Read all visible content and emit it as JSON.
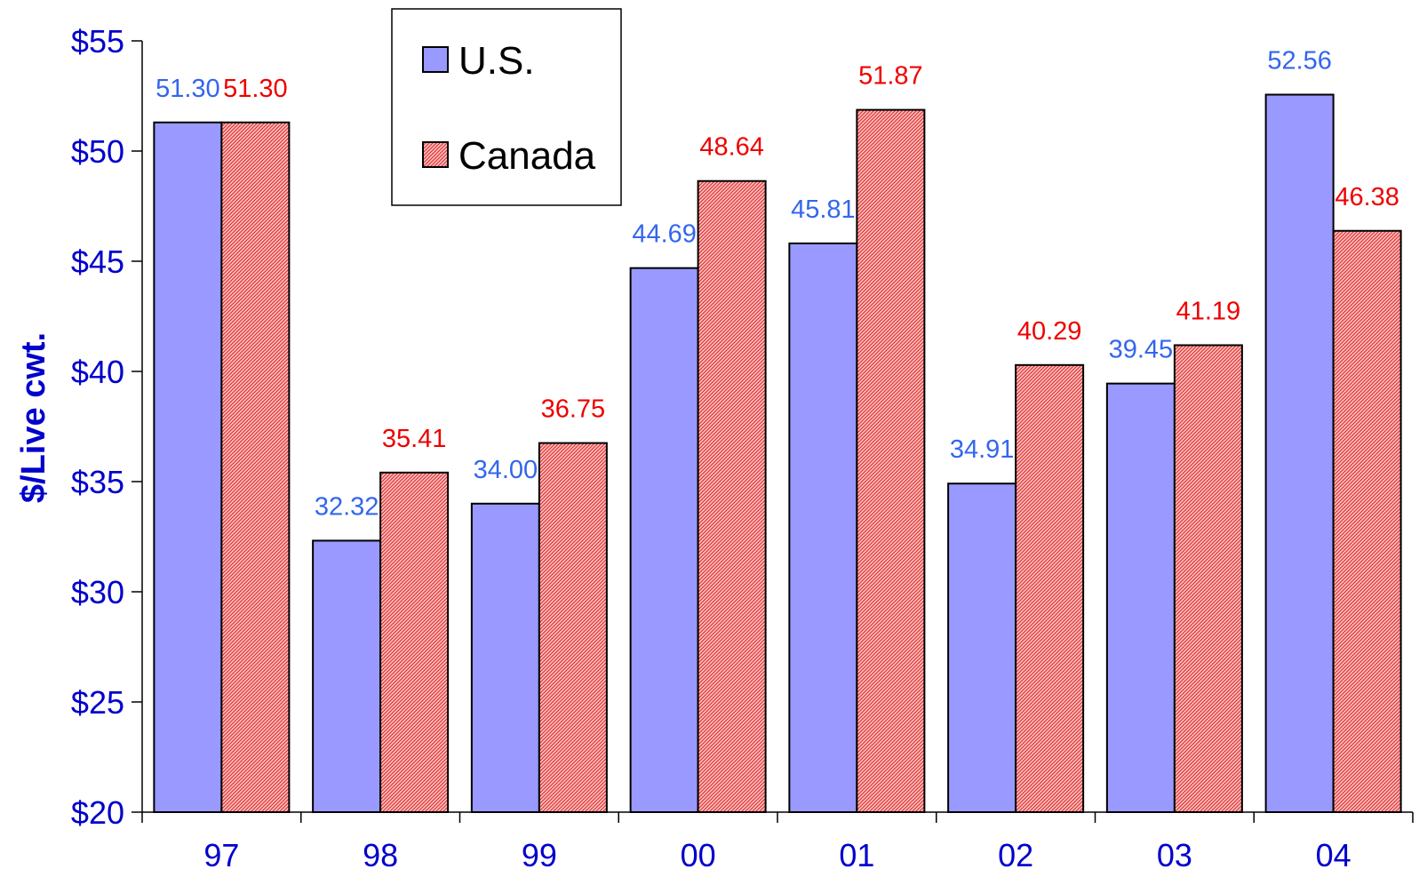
{
  "chart_data": {
    "type": "bar",
    "title": "",
    "xlabel": "",
    "ylabel": "$/Live cwt.",
    "categories": [
      "97",
      "98",
      "99",
      "00",
      "01",
      "02",
      "03",
      "04"
    ],
    "ylim": [
      20,
      55
    ],
    "yticks": [
      20,
      25,
      30,
      35,
      40,
      45,
      50,
      55
    ],
    "ytick_labels": [
      "$20",
      "$25",
      "$30",
      "$35",
      "$40",
      "$45",
      "$50",
      "$55"
    ],
    "grid": false,
    "legend_position": "top-center",
    "series": [
      {
        "name": "U.S.",
        "values": [
          51.3,
          32.32,
          34.0,
          44.69,
          45.81,
          34.91,
          39.45,
          52.56
        ],
        "labels": [
          "51.30",
          "32.32",
          "34.00",
          "44.69",
          "45.81",
          "34.91",
          "39.45",
          "52.56"
        ],
        "color": "#9999ff",
        "label_color": "#3366ee"
      },
      {
        "name": "Canada",
        "values": [
          51.3,
          35.41,
          36.75,
          48.64,
          51.87,
          40.29,
          41.19,
          46.38
        ],
        "labels": [
          "51.30",
          "35.41",
          "36.75",
          "48.64",
          "51.87",
          "40.29",
          "41.19",
          "46.38"
        ],
        "color": "#ff8888",
        "label_color": "#ee0000"
      }
    ]
  }
}
